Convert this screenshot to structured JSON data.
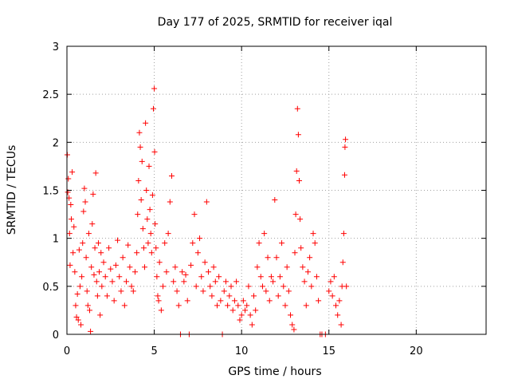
{
  "chart_data": {
    "type": "scatter",
    "title": "Day 177 of 2025, SRMTID for receiver iqal",
    "xlabel": "GPS time / hours",
    "ylabel": "SRMTID / TECUs",
    "xlim": [
      0,
      24
    ],
    "ylim": [
      0,
      3
    ],
    "xticks": [
      0,
      5,
      10,
      15,
      20
    ],
    "xtick_labels": [
      "0",
      "5",
      "10",
      "15",
      "20"
    ],
    "yticks": [
      0,
      0.5,
      1,
      1.5,
      2,
      2.5,
      3
    ],
    "ytick_labels": [
      "0",
      "0.5",
      "1",
      "1.5",
      "2",
      "2.5",
      "3"
    ],
    "grid": true,
    "marker": "+",
    "series": [
      {
        "name": "SRMTID",
        "color": "#ff0000",
        "points": [
          [
            0.02,
            1.87
          ],
          [
            0.05,
            1.48
          ],
          [
            0.08,
            1.62
          ],
          [
            0.12,
            1.42
          ],
          [
            0.15,
            1.05
          ],
          [
            0.18,
            0.72
          ],
          [
            0.22,
            1.35
          ],
          [
            0.25,
            1.2
          ],
          [
            0.3,
            1.69
          ],
          [
            0.35,
            0.85
          ],
          [
            0.4,
            1.12
          ],
          [
            0.45,
            0.65
          ],
          [
            0.5,
            0.3
          ],
          [
            0.55,
            0.18
          ],
          [
            0.6,
            0.42
          ],
          [
            0.65,
            0.15
          ],
          [
            0.7,
            0.88
          ],
          [
            0.75,
            0.5
          ],
          [
            0.8,
            0.1
          ],
          [
            0.85,
            0.6
          ],
          [
            0.9,
            0.95
          ],
          [
            0.95,
            1.28
          ],
          [
            1.0,
            1.52
          ],
          [
            1.05,
            1.38
          ],
          [
            1.1,
            0.8
          ],
          [
            1.15,
            0.45
          ],
          [
            1.2,
            0.3
          ],
          [
            1.25,
            1.05
          ],
          [
            1.3,
            0.25
          ],
          [
            1.35,
            0.03
          ],
          [
            1.4,
            0.7
          ],
          [
            1.45,
            1.15
          ],
          [
            1.5,
            1.46
          ],
          [
            1.55,
            0.62
          ],
          [
            1.6,
            0.9
          ],
          [
            1.65,
            1.68
          ],
          [
            1.7,
            0.55
          ],
          [
            1.75,
            0.4
          ],
          [
            1.8,
            0.95
          ],
          [
            1.85,
            0.65
          ],
          [
            1.9,
            0.2
          ],
          [
            1.95,
            0.85
          ],
          [
            2.0,
            0.5
          ],
          [
            2.1,
            0.75
          ],
          [
            2.2,
            0.6
          ],
          [
            2.3,
            0.4
          ],
          [
            2.4,
            0.9
          ],
          [
            2.5,
            0.68
          ],
          [
            2.6,
            0.55
          ],
          [
            2.7,
            0.35
          ],
          [
            2.8,
            0.72
          ],
          [
            2.9,
            0.98
          ],
          [
            3.0,
            0.6
          ],
          [
            3.1,
            0.45
          ],
          [
            3.2,
            0.8
          ],
          [
            3.3,
            0.3
          ],
          [
            3.4,
            0.55
          ],
          [
            3.5,
            0.93
          ],
          [
            3.6,
            0.7
          ],
          [
            3.7,
            0.5
          ],
          [
            3.8,
            0.45
          ],
          [
            3.9,
            0.65
          ],
          [
            4.0,
            0.85
          ],
          [
            4.05,
            1.25
          ],
          [
            4.1,
            1.6
          ],
          [
            4.15,
            2.1
          ],
          [
            4.2,
            1.95
          ],
          [
            4.25,
            1.4
          ],
          [
            4.3,
            1.8
          ],
          [
            4.35,
            1.1
          ],
          [
            4.4,
            0.9
          ],
          [
            4.45,
            0.7
          ],
          [
            4.5,
            2.2
          ],
          [
            4.55,
            1.5
          ],
          [
            4.6,
            1.2
          ],
          [
            4.65,
            0.95
          ],
          [
            4.7,
            1.75
          ],
          [
            4.75,
            1.3
          ],
          [
            4.8,
            1.05
          ],
          [
            4.85,
            0.85
          ],
          [
            4.9,
            1.45
          ],
          [
            4.95,
            2.35
          ],
          [
            5.0,
            2.56
          ],
          [
            5.02,
            1.9
          ],
          [
            5.05,
            1.15
          ],
          [
            5.1,
            0.9
          ],
          [
            5.15,
            0.6
          ],
          [
            5.2,
            0.4
          ],
          [
            5.25,
            0.35
          ],
          [
            5.3,
            0.75
          ],
          [
            5.4,
            0.25
          ],
          [
            5.5,
            0.5
          ],
          [
            5.6,
            0.95
          ],
          [
            5.7,
            0.65
          ],
          [
            5.8,
            1.05
          ],
          [
            5.9,
            1.38
          ],
          [
            6.0,
            1.65
          ],
          [
            6.1,
            0.55
          ],
          [
            6.2,
            0.7
          ],
          [
            6.3,
            0.45
          ],
          [
            6.4,
            0.3
          ],
          [
            6.5,
            0.0
          ],
          [
            6.6,
            0.65
          ],
          [
            6.7,
            0.55
          ],
          [
            6.8,
            0.62
          ],
          [
            6.9,
            0.35
          ],
          [
            7.0,
            0.0
          ],
          [
            7.1,
            0.72
          ],
          [
            7.2,
            0.95
          ],
          [
            7.3,
            1.25
          ],
          [
            7.4,
            0.5
          ],
          [
            7.5,
            0.85
          ],
          [
            7.6,
            1.0
          ],
          [
            7.7,
            0.6
          ],
          [
            7.8,
            0.45
          ],
          [
            7.9,
            0.75
          ],
          [
            8.0,
            1.38
          ],
          [
            8.1,
            0.65
          ],
          [
            8.2,
            0.5
          ],
          [
            8.3,
            0.4
          ],
          [
            8.4,
            0.7
          ],
          [
            8.5,
            0.55
          ],
          [
            8.6,
            0.3
          ],
          [
            8.7,
            0.6
          ],
          [
            8.8,
            0.35
          ],
          [
            8.9,
            0.0
          ],
          [
            9.0,
            0.45
          ],
          [
            9.1,
            0.55
          ],
          [
            9.2,
            0.3
          ],
          [
            9.3,
            0.4
          ],
          [
            9.4,
            0.5
          ],
          [
            9.5,
            0.25
          ],
          [
            9.6,
            0.35
          ],
          [
            9.7,
            0.55
          ],
          [
            9.8,
            0.3
          ],
          [
            9.9,
            0.15
          ],
          [
            10.0,
            0.2
          ],
          [
            10.1,
            0.35
          ],
          [
            10.2,
            0.25
          ],
          [
            10.3,
            0.3
          ],
          [
            10.4,
            0.5
          ],
          [
            10.5,
            0.2
          ],
          [
            10.6,
            0.1
          ],
          [
            10.7,
            0.4
          ],
          [
            10.8,
            0.25
          ],
          [
            10.9,
            0.7
          ],
          [
            11.0,
            0.95
          ],
          [
            11.1,
            0.6
          ],
          [
            11.2,
            0.5
          ],
          [
            11.3,
            1.05
          ],
          [
            11.4,
            0.45
          ],
          [
            11.5,
            0.8
          ],
          [
            11.6,
            0.35
          ],
          [
            11.7,
            0.6
          ],
          [
            11.8,
            0.55
          ],
          [
            11.9,
            1.4
          ],
          [
            12.0,
            0.8
          ],
          [
            12.1,
            0.4
          ],
          [
            12.2,
            0.6
          ],
          [
            12.3,
            0.95
          ],
          [
            12.4,
            0.5
          ],
          [
            12.5,
            0.3
          ],
          [
            12.6,
            0.7
          ],
          [
            12.7,
            0.45
          ],
          [
            12.8,
            0.2
          ],
          [
            12.9,
            0.1
          ],
          [
            13.0,
            0.05
          ],
          [
            13.05,
            0.85
          ],
          [
            13.1,
            1.25
          ],
          [
            13.15,
            1.7
          ],
          [
            13.2,
            2.35
          ],
          [
            13.25,
            2.08
          ],
          [
            13.3,
            1.6
          ],
          [
            13.35,
            1.2
          ],
          [
            13.4,
            0.9
          ],
          [
            13.5,
            0.7
          ],
          [
            13.6,
            0.55
          ],
          [
            13.7,
            0.3
          ],
          [
            13.8,
            0.65
          ],
          [
            13.9,
            0.8
          ],
          [
            14.0,
            0.5
          ],
          [
            14.1,
            1.05
          ],
          [
            14.2,
            0.95
          ],
          [
            14.3,
            0.6
          ],
          [
            14.4,
            0.35
          ],
          [
            14.5,
            0.0
          ],
          [
            14.6,
            0.0
          ],
          [
            14.8,
            0.0
          ],
          [
            15.0,
            0.45
          ],
          [
            15.1,
            0.55
          ],
          [
            15.2,
            0.4
          ],
          [
            15.3,
            0.6
          ],
          [
            15.4,
            0.3
          ],
          [
            15.5,
            0.2
          ],
          [
            15.6,
            0.35
          ],
          [
            15.7,
            0.1
          ],
          [
            15.75,
            0.5
          ],
          [
            15.8,
            0.75
          ],
          [
            15.85,
            1.05
          ],
          [
            15.9,
            1.66
          ],
          [
            15.92,
            1.95
          ],
          [
            15.95,
            2.03
          ],
          [
            16.0,
            0.5
          ]
        ]
      }
    ]
  }
}
